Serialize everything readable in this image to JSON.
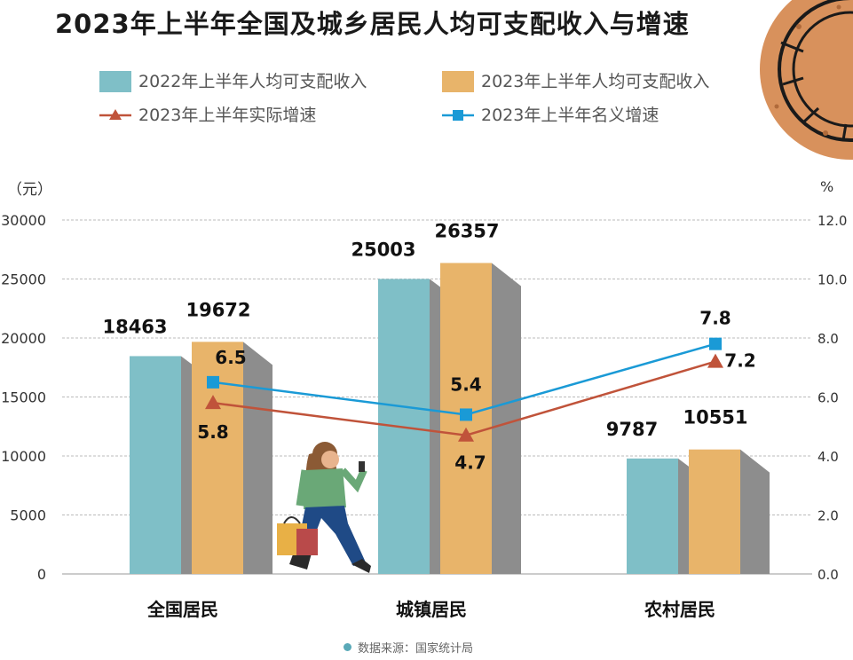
{
  "colors": {
    "bar_2022": "#7fbfc7",
    "bar_2023": "#e8b46a",
    "bar_side": "#8d8d8d",
    "line_real": "#c0533a",
    "line_nominal": "#1a9ad6",
    "grid": "#bbbbbb"
  },
  "source_text": "数据来源：国家统计局",
  "decorations": [
    "coin-icon",
    "shopping-woman-illustration"
  ],
  "chart_data": {
    "type": "bar",
    "title": "2023年上半年全国及城乡居民人均可支配收入与增速",
    "ylabel": "（元）",
    "y2label": "%",
    "ylim": [
      0,
      30000
    ],
    "y2lim": [
      0,
      12
    ],
    "yticks": [
      "0",
      "5000",
      "10000",
      "15000",
      "20000",
      "25000",
      "30000"
    ],
    "y2ticks": [
      "0.0",
      "2.0",
      "4.0",
      "6.0",
      "8.0",
      "10.0",
      "12.0"
    ],
    "grid": true,
    "legend_position": "top",
    "categories": [
      "全国居民",
      "城镇居民",
      "农村居民"
    ],
    "series": [
      {
        "name": "2022年上半年人均可支配收入",
        "type": "bar",
        "axis": "left",
        "values": [
          18463,
          25003,
          9787
        ]
      },
      {
        "name": "2023年上半年人均可支配收入",
        "type": "bar",
        "axis": "left",
        "values": [
          19672,
          26357,
          10551
        ]
      },
      {
        "name": "2023年上半年实际增速",
        "type": "line",
        "marker": "triangle",
        "axis": "right",
        "values": [
          5.8,
          4.7,
          7.2
        ]
      },
      {
        "name": "2023年上半年名义增速",
        "type": "line",
        "marker": "square",
        "axis": "right",
        "values": [
          6.5,
          5.4,
          7.8
        ]
      }
    ]
  }
}
